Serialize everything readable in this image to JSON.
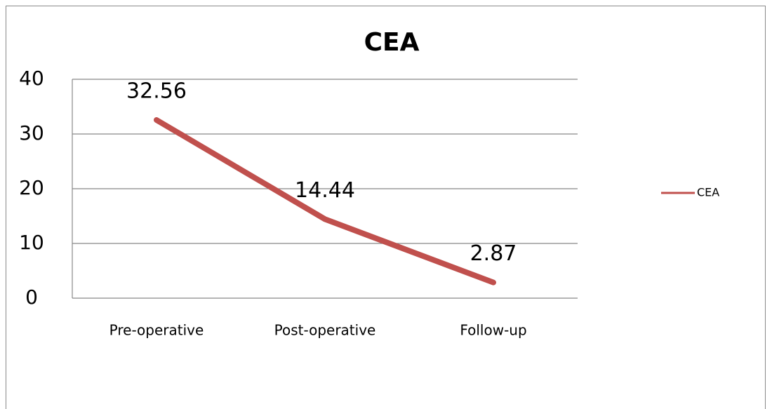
{
  "chart_data": {
    "type": "line",
    "title": "CEA",
    "categories": [
      "Pre-operative",
      "Post-operative",
      "Follow-up"
    ],
    "series": [
      {
        "name": "CEA",
        "color": "#c0504d",
        "values": [
          32.56,
          14.44,
          2.87
        ]
      }
    ],
    "ylim": [
      0,
      40
    ],
    "yticks": [
      0,
      10,
      20,
      30,
      40
    ],
    "grid": true,
    "legend": "right",
    "data_labels": true
  }
}
